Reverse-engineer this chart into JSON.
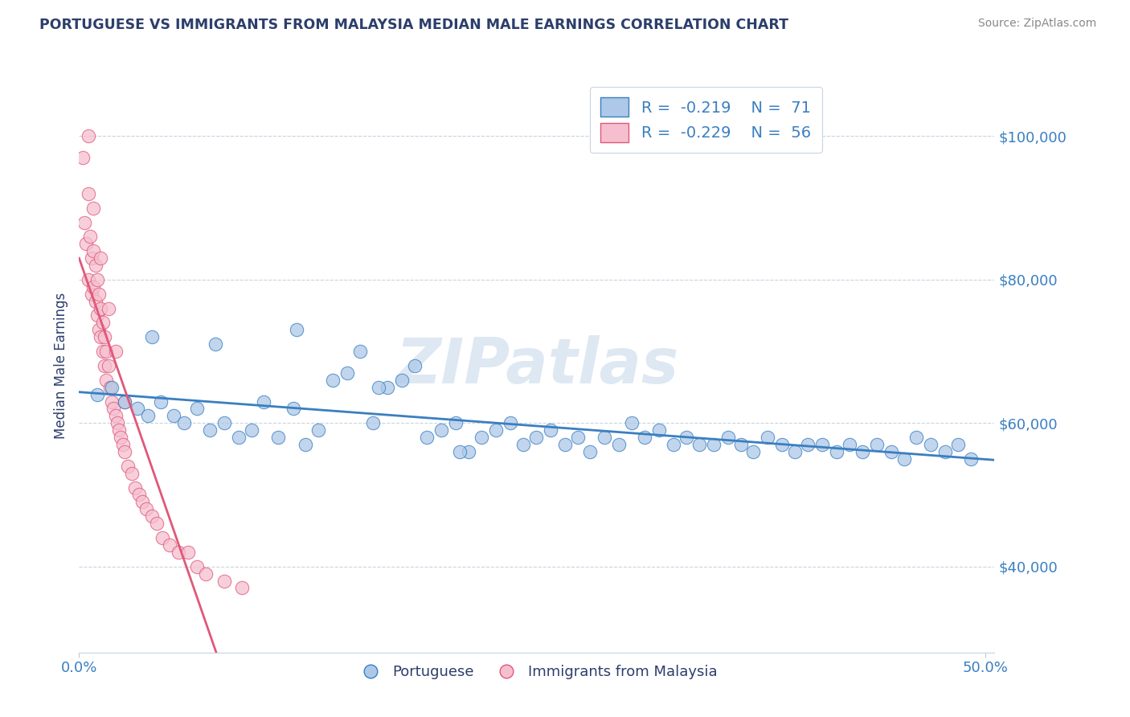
{
  "title": "PORTUGUESE VS IMMIGRANTS FROM MALAYSIA MEDIAN MALE EARNINGS CORRELATION CHART",
  "source": "Source: ZipAtlas.com",
  "ylabel": "Median Male Earnings",
  "y_ticks": [
    40000,
    60000,
    80000,
    100000
  ],
  "y_tick_labels": [
    "$40,000",
    "$60,000",
    "$80,000",
    "$100,000"
  ],
  "x_lim": [
    0.0,
    0.505
  ],
  "y_lim": [
    28000,
    108000
  ],
  "legend_labels": [
    "Portuguese",
    "Immigrants from Malaysia"
  ],
  "r_portuguese": -0.219,
  "n_portuguese": 71,
  "r_malaysia": -0.229,
  "n_malaysia": 56,
  "blue_color": "#adc8e8",
  "blue_line_color": "#3a7fc1",
  "pink_color": "#f5bfd0",
  "pink_line_color": "#e05878",
  "title_color": "#2c3e6b",
  "axis_label_color": "#2c3e6b",
  "tick_label_color": "#3a7fc1",
  "source_color": "#888888",
  "watermark_color": "#c8daea",
  "portuguese_x": [
    0.01,
    0.018,
    0.025,
    0.032,
    0.038,
    0.045,
    0.052,
    0.058,
    0.065,
    0.072,
    0.08,
    0.088,
    0.095,
    0.102,
    0.11,
    0.118,
    0.125,
    0.132,
    0.14,
    0.148,
    0.155,
    0.162,
    0.17,
    0.178,
    0.185,
    0.192,
    0.2,
    0.208,
    0.215,
    0.222,
    0.23,
    0.238,
    0.245,
    0.252,
    0.26,
    0.268,
    0.275,
    0.282,
    0.29,
    0.298,
    0.305,
    0.312,
    0.32,
    0.328,
    0.335,
    0.342,
    0.35,
    0.358,
    0.365,
    0.372,
    0.38,
    0.388,
    0.395,
    0.402,
    0.41,
    0.418,
    0.425,
    0.432,
    0.44,
    0.448,
    0.455,
    0.462,
    0.47,
    0.478,
    0.485,
    0.492,
    0.04,
    0.075,
    0.12,
    0.165,
    0.21
  ],
  "portuguese_y": [
    64000,
    65000,
    63000,
    62000,
    61000,
    63000,
    61000,
    60000,
    62000,
    59000,
    60000,
    58000,
    59000,
    63000,
    58000,
    62000,
    57000,
    59000,
    66000,
    67000,
    70000,
    60000,
    65000,
    66000,
    68000,
    58000,
    59000,
    60000,
    56000,
    58000,
    59000,
    60000,
    57000,
    58000,
    59000,
    57000,
    58000,
    56000,
    58000,
    57000,
    60000,
    58000,
    59000,
    57000,
    58000,
    57000,
    57000,
    58000,
    57000,
    56000,
    58000,
    57000,
    56000,
    57000,
    57000,
    56000,
    57000,
    56000,
    57000,
    56000,
    55000,
    58000,
    57000,
    56000,
    57000,
    55000,
    72000,
    71000,
    73000,
    65000,
    56000
  ],
  "malaysia_x": [
    0.002,
    0.003,
    0.004,
    0.005,
    0.005,
    0.006,
    0.007,
    0.007,
    0.008,
    0.008,
    0.009,
    0.009,
    0.01,
    0.01,
    0.011,
    0.011,
    0.012,
    0.012,
    0.013,
    0.013,
    0.014,
    0.014,
    0.015,
    0.015,
    0.016,
    0.017,
    0.018,
    0.019,
    0.02,
    0.021,
    0.022,
    0.023,
    0.024,
    0.025,
    0.027,
    0.029,
    0.031,
    0.033,
    0.035,
    0.037,
    0.04,
    0.043,
    0.046,
    0.05,
    0.055,
    0.06,
    0.065,
    0.07,
    0.08,
    0.09,
    0.005,
    0.008,
    0.012,
    0.016,
    0.02,
    0.025
  ],
  "malaysia_y": [
    97000,
    88000,
    85000,
    92000,
    80000,
    86000,
    83000,
    78000,
    84000,
    79000,
    82000,
    77000,
    80000,
    75000,
    78000,
    73000,
    76000,
    72000,
    74000,
    70000,
    72000,
    68000,
    70000,
    66000,
    68000,
    65000,
    63000,
    62000,
    61000,
    60000,
    59000,
    58000,
    57000,
    56000,
    54000,
    53000,
    51000,
    50000,
    49000,
    48000,
    47000,
    46000,
    44000,
    43000,
    42000,
    42000,
    40000,
    39000,
    38000,
    37000,
    100000,
    90000,
    83000,
    76000,
    70000,
    63000
  ]
}
